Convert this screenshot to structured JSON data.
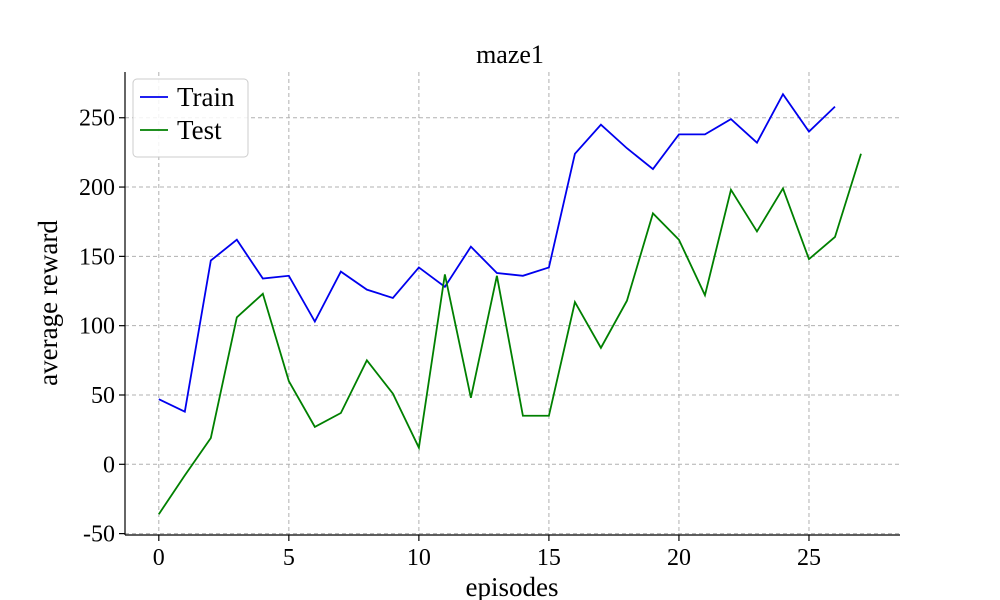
{
  "chart_data": {
    "type": "line",
    "title": "maze1",
    "xlabel": "episodes",
    "ylabel": "average reward",
    "xlim": [
      -1.3,
      28.5
    ],
    "ylim": [
      -51,
      283
    ],
    "xticks": [
      0,
      5,
      10,
      15,
      20,
      25
    ],
    "yticks": [
      -50,
      0,
      50,
      100,
      150,
      200,
      250
    ],
    "grid": true,
    "legend_position": "upper-left",
    "series": [
      {
        "name": "Train",
        "color": "#0000ee",
        "x": [
          0,
          1,
          2,
          3,
          4,
          5,
          6,
          7,
          8,
          9,
          10,
          11,
          12,
          13,
          14,
          15,
          16,
          17,
          18,
          19,
          20,
          21,
          22,
          23,
          24,
          25,
          26
        ],
        "values": [
          47,
          38,
          147,
          162,
          134,
          136,
          103,
          139,
          126,
          120,
          142,
          128,
          157,
          138,
          136,
          142,
          224,
          245,
          228,
          213,
          238,
          238,
          249,
          232,
          267,
          240,
          258
        ]
      },
      {
        "name": "Test",
        "color": "#008000",
        "x": [
          0,
          1,
          2,
          3,
          4,
          5,
          6,
          7,
          8,
          9,
          10,
          11,
          12,
          13,
          14,
          15,
          16,
          17,
          18,
          19,
          20,
          21,
          22,
          23,
          24,
          25,
          26,
          27
        ],
        "values": [
          -36,
          -8,
          19,
          106,
          123,
          60,
          27,
          37,
          75,
          51,
          12,
          137,
          48,
          136,
          35,
          35,
          117,
          84,
          118,
          181,
          162,
          122,
          198,
          168,
          199,
          148,
          164,
          224
        ]
      }
    ]
  }
}
